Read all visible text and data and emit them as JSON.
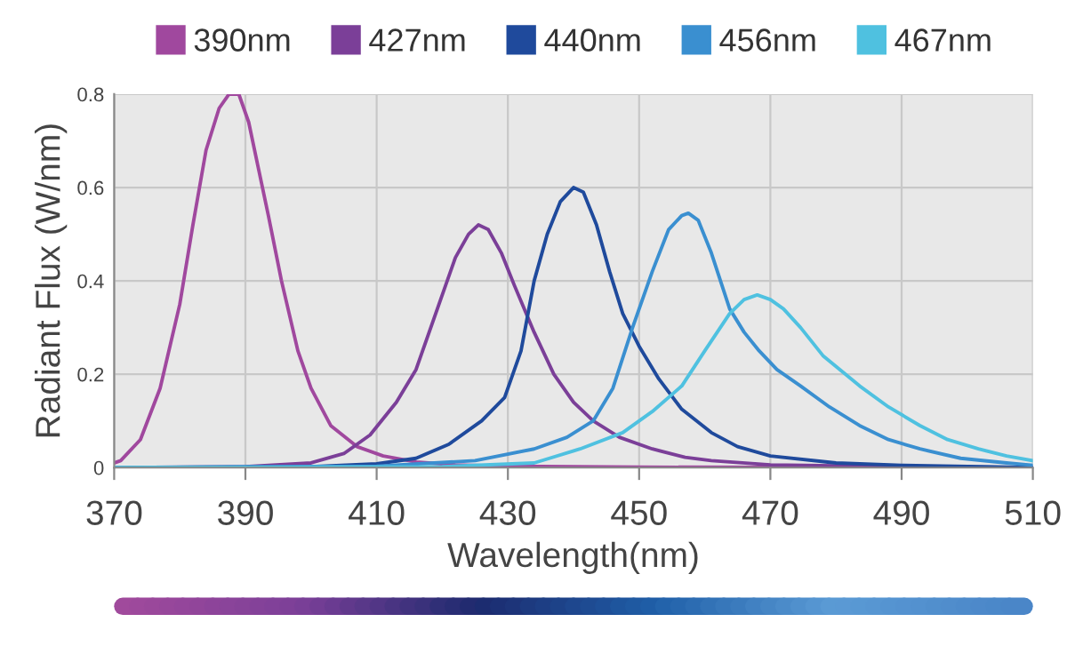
{
  "chart_data": {
    "type": "line",
    "xlabel": "Wavelength(nm)",
    "ylabel": "Radiant Flux (W/nm)",
    "xlim": [
      370,
      510
    ],
    "xticks": [
      370,
      390,
      410,
      430,
      450,
      470,
      490,
      510
    ],
    "ylim": [
      0,
      0.8
    ],
    "yticks": [
      0,
      0.2,
      0.4,
      0.6,
      0.8
    ],
    "grid": true,
    "legend": "top",
    "marker": "none",
    "line_style": "solid",
    "series": [
      {
        "name": "390nm",
        "color": "#a0489e",
        "x": [
          370,
          371,
          374,
          377,
          380,
          382,
          384,
          386,
          387.5,
          389,
          390.5,
          392,
          393.5,
          395.5,
          398,
          400,
          403,
          407,
          411,
          416,
          422,
          430,
          450,
          480,
          510
        ],
        "values": [
          0.01,
          0.015,
          0.06,
          0.17,
          0.35,
          0.52,
          0.68,
          0.77,
          0.8,
          0.8,
          0.74,
          0.64,
          0.54,
          0.4,
          0.25,
          0.17,
          0.09,
          0.045,
          0.025,
          0.012,
          0.006,
          0.003,
          0.001,
          0,
          0
        ]
      },
      {
        "name": "427nm",
        "color": "#7b3f98",
        "x": [
          370,
          390,
          400,
          405,
          409,
          413,
          416,
          419,
          422,
          424,
          425.5,
          427,
          429,
          431,
          434,
          437,
          440,
          443,
          447,
          452,
          457,
          461,
          470,
          490,
          510
        ],
        "values": [
          0,
          0.002,
          0.01,
          0.03,
          0.07,
          0.14,
          0.21,
          0.33,
          0.45,
          0.5,
          0.52,
          0.51,
          0.46,
          0.39,
          0.29,
          0.2,
          0.14,
          0.1,
          0.065,
          0.04,
          0.022,
          0.015,
          0.006,
          0.002,
          0
        ]
      },
      {
        "name": "440nm",
        "color": "#1f4a9c",
        "x": [
          370,
          400,
          410,
          416,
          421,
          426,
          429.5,
          432,
          434,
          436,
          438,
          440,
          441.5,
          443.5,
          445.5,
          447.5,
          450,
          453,
          456.5,
          461,
          465,
          470,
          480,
          490,
          510
        ],
        "values": [
          0,
          0.002,
          0.008,
          0.02,
          0.05,
          0.1,
          0.15,
          0.25,
          0.4,
          0.5,
          0.57,
          0.6,
          0.59,
          0.52,
          0.42,
          0.33,
          0.26,
          0.19,
          0.125,
          0.075,
          0.045,
          0.025,
          0.01,
          0.005,
          0
        ]
      },
      {
        "name": "456nm",
        "color": "#3a8fd0",
        "x": [
          370,
          410,
          425,
          434,
          439,
          443,
          446,
          449,
          452,
          454.5,
          456.5,
          457.5,
          459,
          461,
          463.8,
          466,
          468.3,
          471,
          474.6,
          479,
          483.6,
          488,
          492.8,
          499,
          506,
          510
        ],
        "values": [
          0,
          0.003,
          0.015,
          0.04,
          0.065,
          0.1,
          0.17,
          0.3,
          0.42,
          0.51,
          0.54,
          0.545,
          0.53,
          0.46,
          0.34,
          0.29,
          0.25,
          0.21,
          0.175,
          0.13,
          0.09,
          0.06,
          0.04,
          0.02,
          0.01,
          0.005
        ]
      },
      {
        "name": "467nm",
        "color": "#4fc1e0",
        "x": [
          370,
          420,
          434,
          441,
          447.5,
          452,
          456.5,
          460,
          463.8,
          466,
          468,
          470,
          472,
          474.6,
          478,
          483.6,
          488,
          492.8,
          497,
          501.7,
          506,
          510
        ],
        "values": [
          0,
          0.002,
          0.01,
          0.04,
          0.075,
          0.12,
          0.175,
          0.25,
          0.33,
          0.36,
          0.37,
          0.36,
          0.34,
          0.3,
          0.24,
          0.175,
          0.13,
          0.09,
          0.06,
          0.04,
          0.025,
          0.015
        ]
      }
    ]
  }
}
